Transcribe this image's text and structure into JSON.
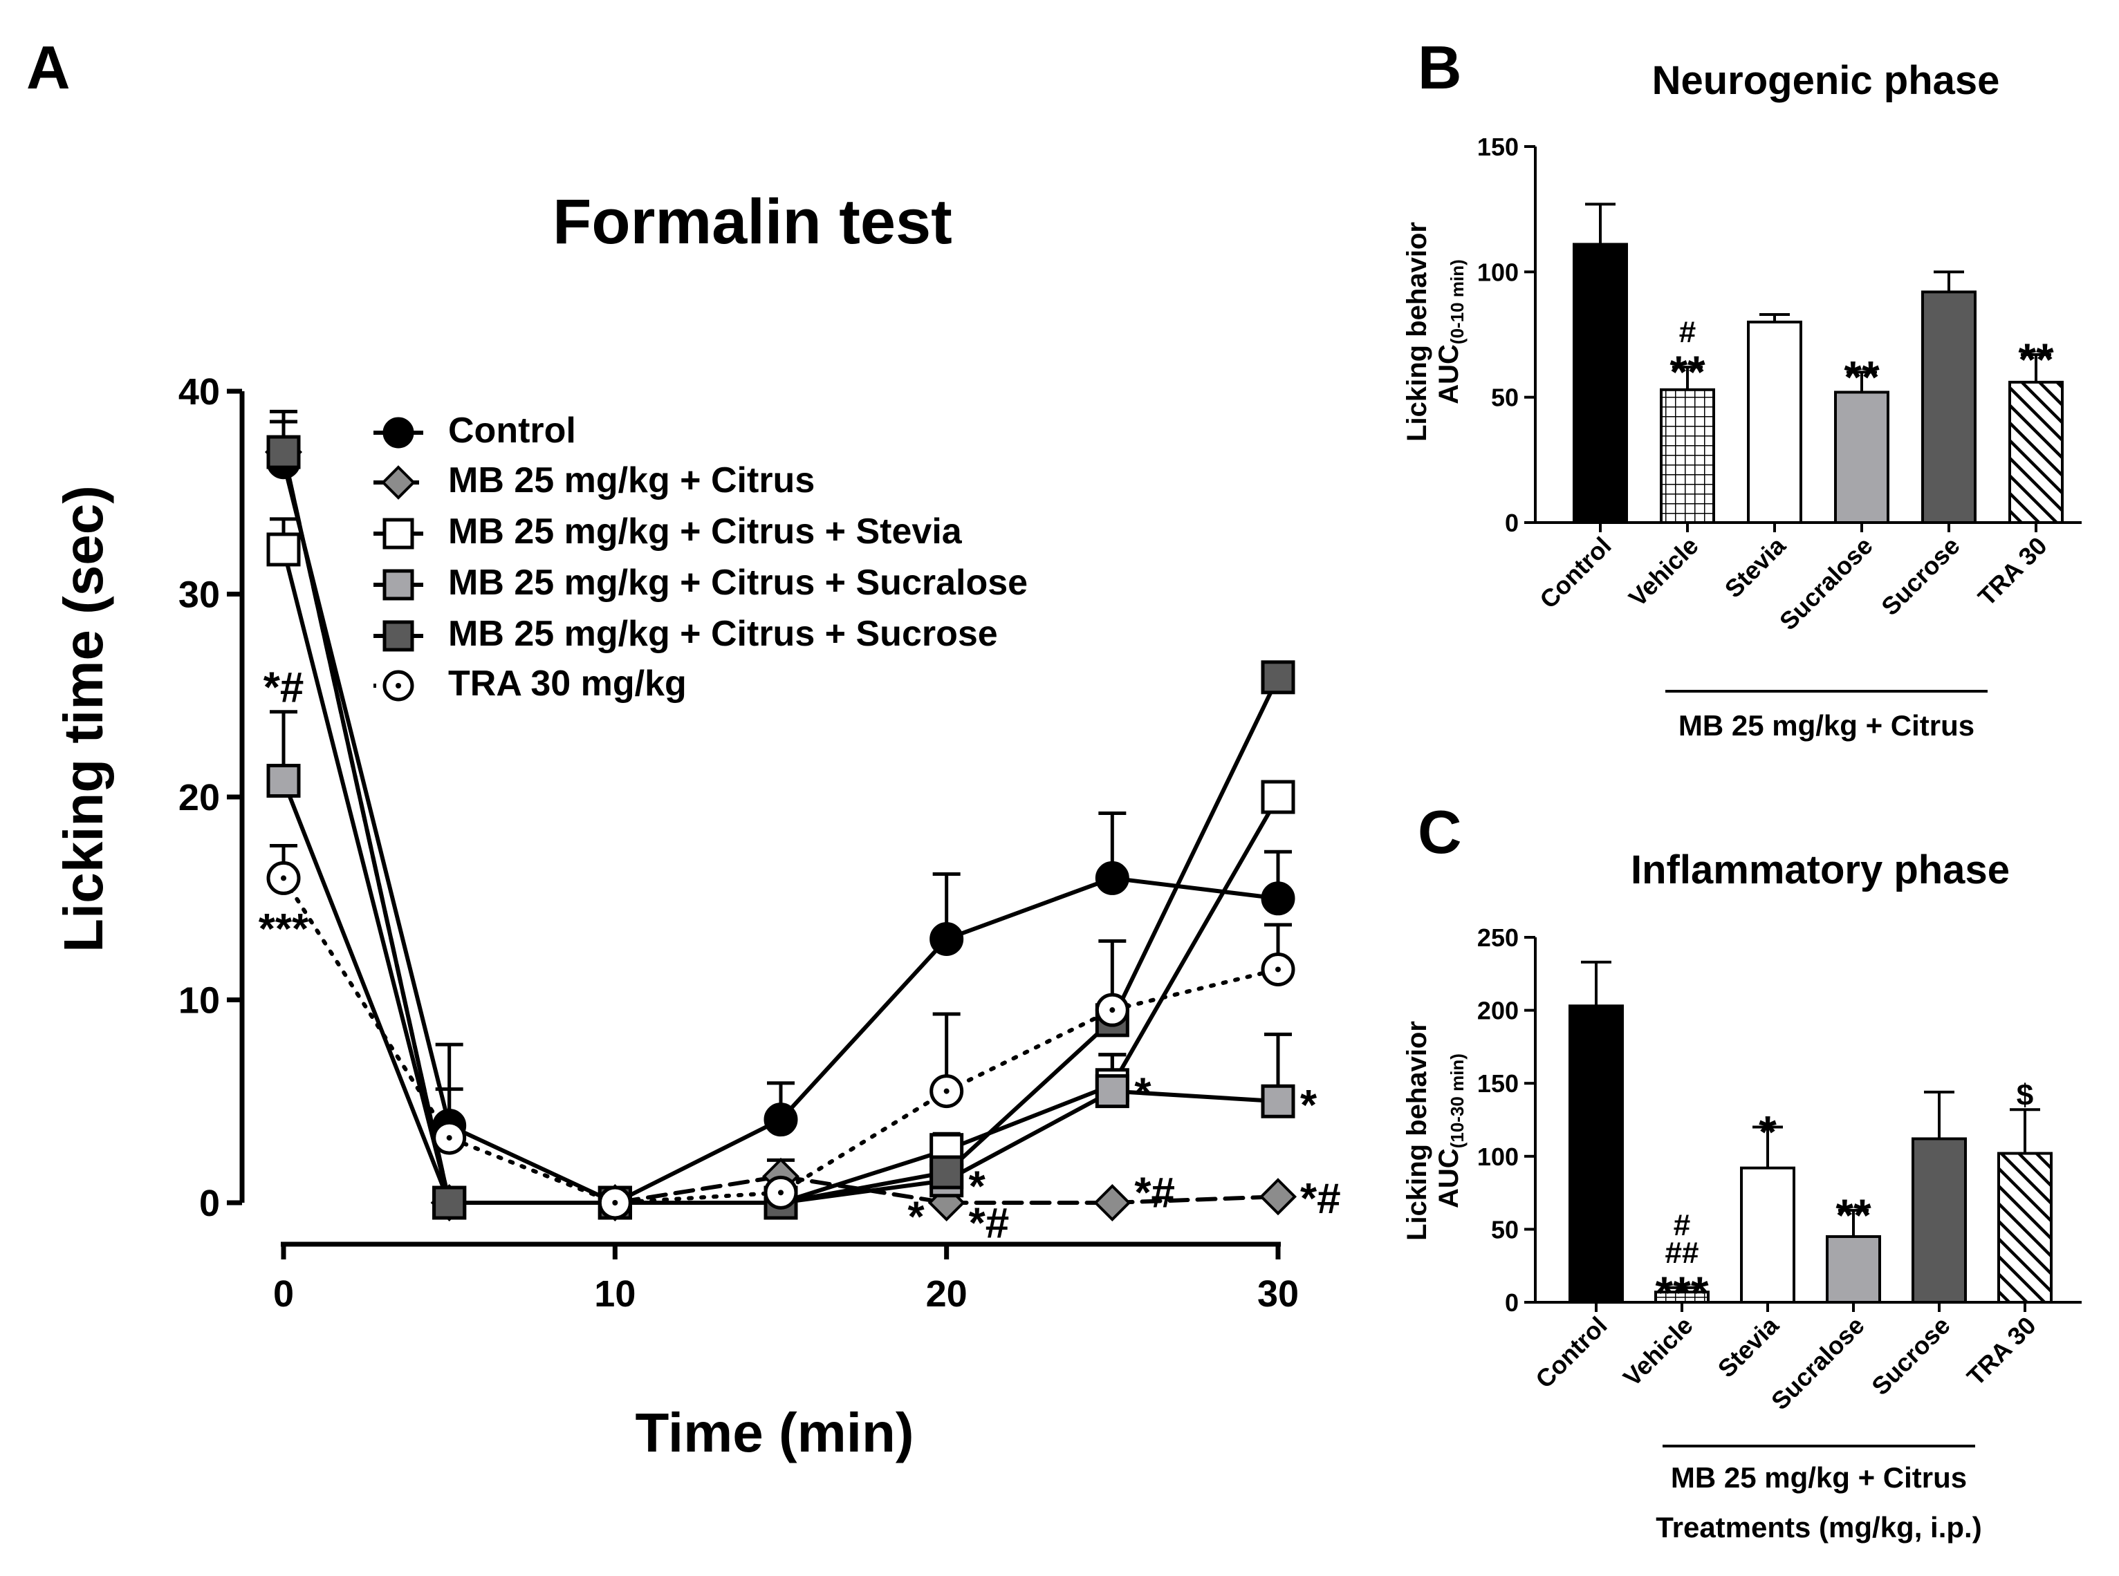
{
  "colors": {
    "control": "#000000",
    "citrus": "#8c8c8c",
    "stevia": "#ffffff",
    "sucralose": "#a6a6aa",
    "sucrose": "#5a5a5a",
    "tra": "#ffffff",
    "line": "#000000"
  },
  "chart_data": [
    {
      "panel": "A",
      "type": "line",
      "title": "Formalin test",
      "xlabel": "Time (min)",
      "ylabel": "Licking time (sec)",
      "xlim": [
        0,
        30
      ],
      "ylim": [
        0,
        40
      ],
      "xticks": [
        0,
        10,
        20,
        30
      ],
      "xtick_labels": [
        "0",
        "10",
        "20",
        "30"
      ],
      "yticks": [
        0,
        10,
        20,
        30,
        40
      ],
      "ytick_labels": [
        "0",
        "10",
        "20",
        "30",
        "40"
      ],
      "x": [
        0,
        5,
        10,
        15,
        20,
        25,
        30
      ],
      "series": [
        {
          "name": "Control",
          "marker": "circle-filled",
          "line": "solid",
          "values": [
            36.5,
            3.8,
            0,
            4.1,
            13,
            16,
            15
          ],
          "err": [
            2.5,
            4,
            0,
            1.8,
            3.2,
            3.2,
            2.3
          ]
        },
        {
          "name": "MB 25 mg/kg + Citrus",
          "marker": "diamond",
          "line": "dashed",
          "values": [
            37,
            0,
            0,
            1.3,
            0,
            0,
            0.3
          ],
          "err": [
            1.5,
            0,
            0,
            0.8,
            0,
            0,
            0
          ]
        },
        {
          "name": "MB 25 mg/kg + Citrus + Stevia",
          "marker": "square-open",
          "line": "solid",
          "values": [
            32.2,
            0,
            0,
            0,
            2.6,
            5.8,
            20
          ],
          "err": [
            1.5,
            0,
            0,
            0,
            0.8,
            1.5,
            0
          ]
        },
        {
          "name": "MB 25 mg/kg + Citrus + Sucralose",
          "marker": "square-light",
          "line": "solid",
          "values": [
            20.8,
            0,
            0,
            0,
            1.1,
            5.5,
            5
          ],
          "err": [
            3.4,
            0,
            0,
            0,
            0.8,
            1.8,
            3.3
          ]
        },
        {
          "name": "MB 25 mg/kg + Citrus + Sucrose",
          "marker": "square-dark",
          "line": "solid",
          "values": [
            37,
            0,
            0,
            0,
            1.5,
            9,
            25.9
          ],
          "err": [
            1.5,
            0,
            0,
            0,
            0.8,
            3.9,
            0
          ]
        },
        {
          "name": "TRA 30 mg/kg",
          "marker": "circle-open-dot",
          "line": "dotted",
          "values": [
            16,
            3.2,
            0,
            0.5,
            5.5,
            9.5,
            11.5
          ],
          "err": [
            1.6,
            2.4,
            0,
            0.8,
            3.8,
            0,
            2.2
          ]
        }
      ],
      "annotations": [
        {
          "text": "*#",
          "x": 0,
          "y": 25.5
        },
        {
          "text": "***",
          "x": 0,
          "y": 13.6
        },
        {
          "text": "*",
          "x": 20,
          "y": -0.6,
          "side": "left"
        },
        {
          "text": "*",
          "x": 20,
          "y": 0.9,
          "side": "right"
        },
        {
          "text": "*#",
          "x": 20,
          "y": -0.9,
          "side": "right"
        },
        {
          "text": "*#",
          "x": 25,
          "y": 0.6,
          "side": "right"
        },
        {
          "text": "*",
          "x": 25,
          "y": 5.5,
          "side": "right"
        },
        {
          "text": "*",
          "x": 30,
          "y": 4.9,
          "side": "right"
        },
        {
          "text": "*#",
          "x": 30,
          "y": 0.3,
          "side": "right"
        }
      ]
    },
    {
      "panel": "B",
      "type": "bar",
      "title": "Neurogenic phase",
      "ylabel": "Licking behavior",
      "ylabel_line2": "AUC",
      "ylabel_sub": "(0-10 min)",
      "ylim": [
        0,
        150
      ],
      "yticks": [
        0,
        50,
        100,
        150
      ],
      "ytick_labels": [
        "0",
        "50",
        "100",
        "150"
      ],
      "categories": [
        "Control",
        "Vehicle",
        "Stevia",
        "Sucralose",
        "Sucrose",
        "TRA 30"
      ],
      "values": [
        111,
        53,
        80,
        52,
        92,
        56
      ],
      "err": [
        16,
        9,
        3,
        8,
        8,
        11
      ],
      "fills": [
        "solid-black",
        "grid",
        "white",
        "light-gray",
        "dark-gray",
        "hatch"
      ],
      "significance": [
        "",
        "**",
        "",
        "**",
        "",
        "**"
      ],
      "significance_top": [
        "",
        "#",
        "",
        "",
        "",
        ""
      ],
      "group_label": "MB 25 mg/kg + Citrus"
    },
    {
      "panel": "C",
      "type": "bar",
      "title": "Inflammatory phase",
      "ylabel": "Licking behavior",
      "ylabel_line2": "AUC",
      "ylabel_sub": "(10-30 min)",
      "ylim": [
        0,
        250
      ],
      "yticks": [
        0,
        50,
        100,
        150,
        200,
        250
      ],
      "ytick_labels": [
        "0",
        "50",
        "100",
        "150",
        "200",
        "250"
      ],
      "categories": [
        "Control",
        "Vehicle",
        "Stevia",
        "Sucralose",
        "Sucrose",
        "TRA 30"
      ],
      "values": [
        203,
        7,
        92,
        45,
        112,
        102
      ],
      "err": [
        30,
        3,
        28,
        18,
        32,
        30
      ],
      "fills": [
        "solid-black",
        "grid",
        "white",
        "light-gray",
        "dark-gray",
        "hatch"
      ],
      "significance": [
        "",
        "***",
        "*",
        "**",
        "",
        "$"
      ],
      "significance_mid": [
        "",
        "##",
        "",
        "",
        "",
        ""
      ],
      "significance_top": [
        "",
        "#",
        "",
        "",
        "",
        ""
      ],
      "group_label": "MB 25 mg/kg + Citrus",
      "xlabel": "Treatments (mg/kg, i.p.)"
    }
  ],
  "panel_letters": [
    "A",
    "B",
    "C"
  ]
}
